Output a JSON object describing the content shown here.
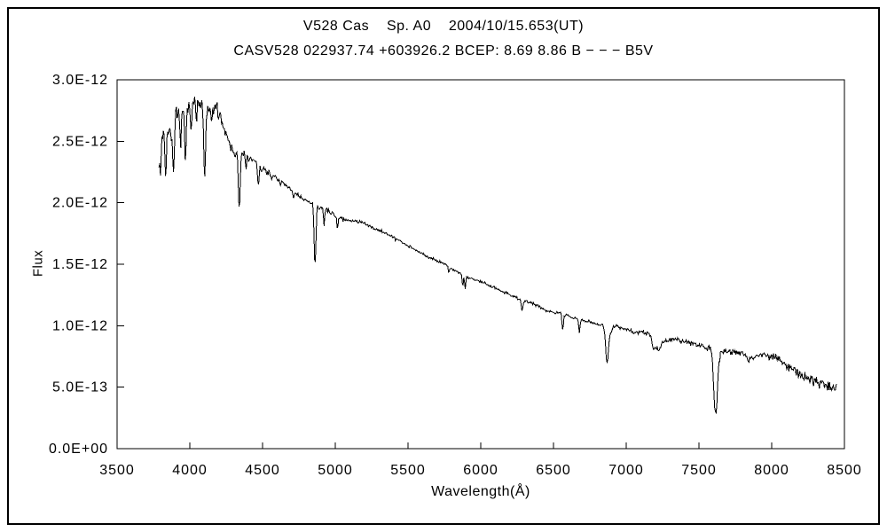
{
  "window": {
    "background_color": "#ffffff",
    "frame_border_color": "#000000"
  },
  "chart_data": {
    "type": "line",
    "title": "V528 Cas    Sp. A0    2004/10/15.653(UT)",
    "subtitle": "CASV528 022937.74 +603926.2 BCEP: 8.69 8.86 B − − − B5V",
    "xlabel": "Wavelength(Å)",
    "ylabel": "Flux",
    "xlim": [
      3500,
      8500
    ],
    "ylim_e12": [
      0,
      3.0
    ],
    "x_ticks": [
      3500,
      4000,
      4500,
      5000,
      5500,
      6000,
      6500,
      7000,
      7500,
      8000,
      8500
    ],
    "y_ticks_e12": [
      0,
      0.5,
      1.0,
      1.5,
      2.0,
      2.5,
      3.0
    ],
    "y_tick_labels_bottom_to_top": [
      "0.0E+00",
      "5.0E-13",
      "1.0E-12",
      "1.5E-12",
      "2.0E-12",
      "2.5E-12",
      "3.0E-12"
    ],
    "grid": false,
    "legend": false,
    "line_color": "#000000",
    "series": [
      {
        "name": "spectrum",
        "x_start": 3788,
        "x_end": 8448,
        "continuum_points_e12": [
          [
            3788,
            2.4
          ],
          [
            3810,
            2.55
          ],
          [
            3845,
            2.6
          ],
          [
            3870,
            2.56
          ],
          [
            3905,
            2.7
          ],
          [
            3950,
            2.72
          ],
          [
            3990,
            2.76
          ],
          [
            4025,
            2.83
          ],
          [
            4060,
            2.8
          ],
          [
            4090,
            2.77
          ],
          [
            4130,
            2.74
          ],
          [
            4180,
            2.78
          ],
          [
            4210,
            2.7
          ],
          [
            4260,
            2.53
          ],
          [
            4300,
            2.42
          ],
          [
            4330,
            2.38
          ],
          [
            4360,
            2.4
          ],
          [
            4420,
            2.36
          ],
          [
            4470,
            2.3
          ],
          [
            4520,
            2.26
          ],
          [
            4600,
            2.19
          ],
          [
            4700,
            2.1
          ],
          [
            4780,
            2.03
          ],
          [
            4840,
            1.99
          ],
          [
            4880,
            1.97
          ],
          [
            4940,
            1.94
          ],
          [
            5000,
            1.9
          ],
          [
            5060,
            1.86
          ],
          [
            5160,
            1.85
          ],
          [
            5250,
            1.8
          ],
          [
            5370,
            1.74
          ],
          [
            5500,
            1.65
          ],
          [
            5620,
            1.57
          ],
          [
            5740,
            1.51
          ],
          [
            5820,
            1.45
          ],
          [
            5900,
            1.4
          ],
          [
            6000,
            1.36
          ],
          [
            6080,
            1.32
          ],
          [
            6200,
            1.25
          ],
          [
            6300,
            1.2
          ],
          [
            6360,
            1.18
          ],
          [
            6460,
            1.12
          ],
          [
            6560,
            1.1
          ],
          [
            6650,
            1.06
          ],
          [
            6760,
            1.03
          ],
          [
            6850,
            1.0
          ],
          [
            6950,
            0.99
          ],
          [
            7050,
            0.95
          ],
          [
            7140,
            0.94
          ],
          [
            7250,
            0.88
          ],
          [
            7350,
            0.88
          ],
          [
            7450,
            0.86
          ],
          [
            7560,
            0.83
          ],
          [
            7660,
            0.79
          ],
          [
            7760,
            0.79
          ],
          [
            7860,
            0.75
          ],
          [
            7960,
            0.77
          ],
          [
            8040,
            0.73
          ],
          [
            8130,
            0.65
          ],
          [
            8220,
            0.58
          ],
          [
            8300,
            0.55
          ],
          [
            8380,
            0.51
          ],
          [
            8448,
            0.49
          ]
        ],
        "absorption_lines_center_depth_e12_sigma": [
          [
            3798,
            0.22,
            5
          ],
          [
            3835,
            0.38,
            5
          ],
          [
            3889,
            0.43,
            5
          ],
          [
            3934,
            0.18,
            4
          ],
          [
            3970,
            0.4,
            5
          ],
          [
            4009,
            0.16,
            4
          ],
          [
            4045,
            0.13,
            4
          ],
          [
            4102,
            0.57,
            6
          ],
          [
            4150,
            0.12,
            4
          ],
          [
            4340,
            0.44,
            6
          ],
          [
            4387,
            0.1,
            4
          ],
          [
            4471,
            0.18,
            4
          ],
          [
            4713,
            0.05,
            4
          ],
          [
            4861,
            0.5,
            6
          ],
          [
            4922,
            0.13,
            4
          ],
          [
            5015,
            0.09,
            4
          ],
          [
            5780,
            0.05,
            4
          ],
          [
            5876,
            0.09,
            4
          ],
          [
            5893,
            0.11,
            4
          ],
          [
            6284,
            0.09,
            5
          ],
          [
            6563,
            0.14,
            5
          ],
          [
            6678,
            0.11,
            4
          ],
          [
            6868,
            0.29,
            9
          ],
          [
            6890,
            0.05,
            12
          ],
          [
            7185,
            0.06,
            8
          ],
          [
            7215,
            0.09,
            22
          ],
          [
            7600,
            0.06,
            5
          ],
          [
            7615,
            0.52,
            12
          ],
          [
            7840,
            0.05,
            8
          ]
        ],
        "noise_profile_e12": [
          [
            3788,
            0.05
          ],
          [
            4000,
            0.045
          ],
          [
            4250,
            0.03
          ],
          [
            4500,
            0.02
          ],
          [
            4800,
            0.013
          ],
          [
            5100,
            0.01
          ],
          [
            5600,
            0.008
          ],
          [
            6200,
            0.008
          ],
          [
            6700,
            0.009
          ],
          [
            7100,
            0.012
          ],
          [
            7400,
            0.014
          ],
          [
            7700,
            0.018
          ],
          [
            8000,
            0.022
          ],
          [
            8200,
            0.028
          ],
          [
            8448,
            0.03
          ]
        ],
        "noise_seed": 7
      }
    ]
  }
}
